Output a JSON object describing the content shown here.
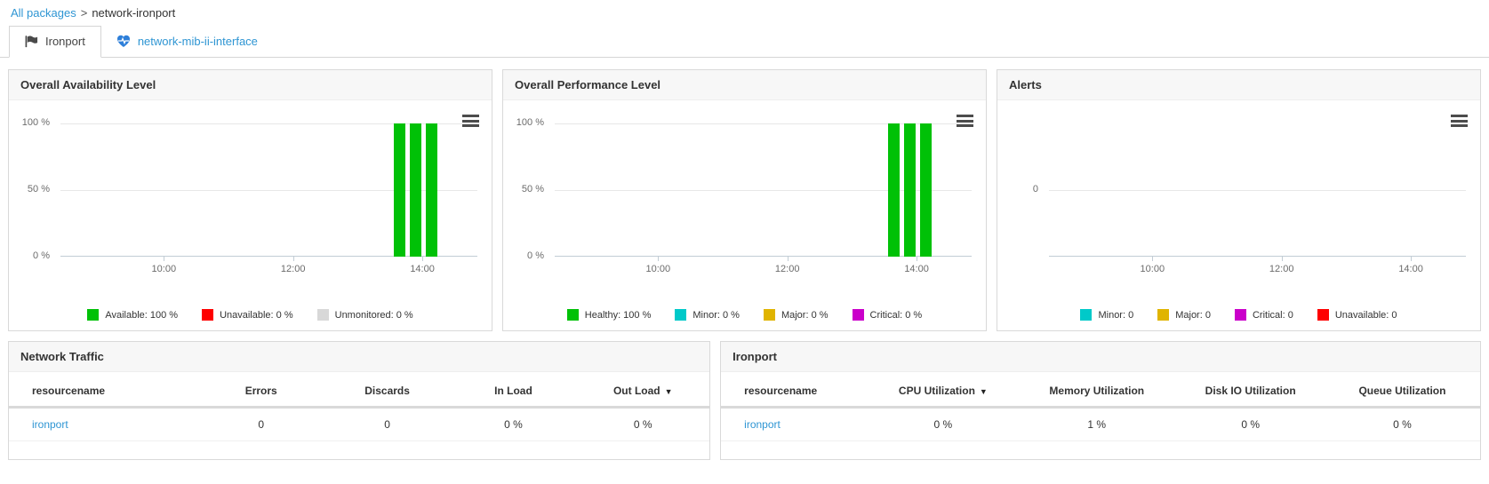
{
  "breadcrumb": {
    "root": "All packages",
    "separator": ">",
    "current": "network-ironport"
  },
  "tabs": {
    "ironport": {
      "label": "Ironport",
      "icon": "flag-icon",
      "active": true
    },
    "interface": {
      "label": "network-mib-ii-interface",
      "icon": "heart-pulse-icon",
      "active": false
    }
  },
  "colors": {
    "link_blue": "#2e95d3",
    "available_green": "#00c107",
    "unavailable_red": "#fe0000",
    "unmonitored_gray": "#d8d8d8",
    "minor_cyan": "#00c9c9",
    "major_gold": "#e0b400",
    "critical_magenta": "#ca00ca"
  },
  "charts": {
    "availability": {
      "title": "Overall Availability Level",
      "menu_icon": "hamburger-menu-icon",
      "y_ticks": {
        "top": "100 %",
        "mid": "50 %",
        "base": "0 %"
      },
      "x_ticks": {
        "t1": "10:00",
        "t2": "12:00",
        "t3": "14:00"
      },
      "legend": [
        {
          "label": "Available: 100 %",
          "color": "#00c107"
        },
        {
          "label": "Unavailable: 0 %",
          "color": "#fe0000"
        },
        {
          "label": "Unmonitored: 0 %",
          "color": "#d8d8d8"
        }
      ],
      "chart_data": {
        "type": "bar",
        "x_axis_ticks": [
          "10:00",
          "12:00",
          "14:00"
        ],
        "ylim": [
          0,
          100
        ],
        "y_axis_ticks": [
          "100 %",
          "50 %",
          "0 %"
        ],
        "series": [
          {
            "name": "Available",
            "color": "#00c107",
            "values": [
              100,
              100,
              100
            ],
            "position_hint": "three bars just before 14:00"
          }
        ],
        "legend_position": "bottom-center"
      }
    },
    "performance": {
      "title": "Overall Performance Level",
      "menu_icon": "hamburger-menu-icon",
      "y_ticks": {
        "top": "100 %",
        "mid": "50 %",
        "base": "0 %"
      },
      "x_ticks": {
        "t1": "10:00",
        "t2": "12:00",
        "t3": "14:00"
      },
      "legend": [
        {
          "label": "Healthy: 100 %",
          "color": "#00c107"
        },
        {
          "label": "Minor: 0 %",
          "color": "#00c9c9"
        },
        {
          "label": "Major: 0 %",
          "color": "#e0b400"
        },
        {
          "label": "Critical: 0 %",
          "color": "#ca00ca"
        }
      ],
      "chart_data": {
        "type": "bar",
        "x_axis_ticks": [
          "10:00",
          "12:00",
          "14:00"
        ],
        "ylim": [
          0,
          100
        ],
        "y_axis_ticks": [
          "100 %",
          "50 %",
          "0 %"
        ],
        "series": [
          {
            "name": "Healthy",
            "color": "#00c107",
            "values": [
              100,
              100,
              100
            ],
            "position_hint": "three bars just before 14:00"
          }
        ],
        "legend_position": "bottom-center"
      }
    },
    "alerts": {
      "title": "Alerts",
      "menu_icon": "hamburger-menu-icon",
      "y_ticks": {
        "mid": "0"
      },
      "x_ticks": {
        "t1": "10:00",
        "t2": "12:00",
        "t3": "14:00"
      },
      "legend": [
        {
          "label": "Minor: 0",
          "color": "#00c9c9"
        },
        {
          "label": "Major: 0",
          "color": "#e0b400"
        },
        {
          "label": "Critical: 0",
          "color": "#ca00ca"
        },
        {
          "label": "Unavailable: 0",
          "color": "#fe0000"
        }
      ],
      "chart_data": {
        "type": "bar",
        "x_axis_ticks": [
          "10:00",
          "12:00",
          "14:00"
        ],
        "y_axis_ticks": [
          "0"
        ],
        "series": [],
        "note": "no alert bars plotted",
        "legend_position": "bottom-center"
      }
    }
  },
  "tables": {
    "network_traffic": {
      "title": "Network Traffic",
      "columns": [
        {
          "label": "resourcename",
          "sort": ""
        },
        {
          "label": "Errors",
          "sort": ""
        },
        {
          "label": "Discards",
          "sort": ""
        },
        {
          "label": "In Load",
          "sort": ""
        },
        {
          "label": "Out Load",
          "sort": "▼"
        }
      ],
      "rows": [
        {
          "resourcename": "ironport",
          "errors": "0",
          "discards": "0",
          "in_load": "0 %",
          "out_load": "0 %"
        }
      ]
    },
    "ironport": {
      "title": "Ironport",
      "columns": [
        {
          "label": "resourcename",
          "sort": ""
        },
        {
          "label": "CPU Utilization",
          "sort": "▼"
        },
        {
          "label": "Memory Utilization",
          "sort": ""
        },
        {
          "label": "Disk IO Utilization",
          "sort": ""
        },
        {
          "label": "Queue Utilization",
          "sort": ""
        }
      ],
      "rows": [
        {
          "resourcename": "ironport",
          "cpu": "0 %",
          "memory": "1 %",
          "disk_io": "0 %",
          "queue": "0 %"
        }
      ]
    }
  }
}
